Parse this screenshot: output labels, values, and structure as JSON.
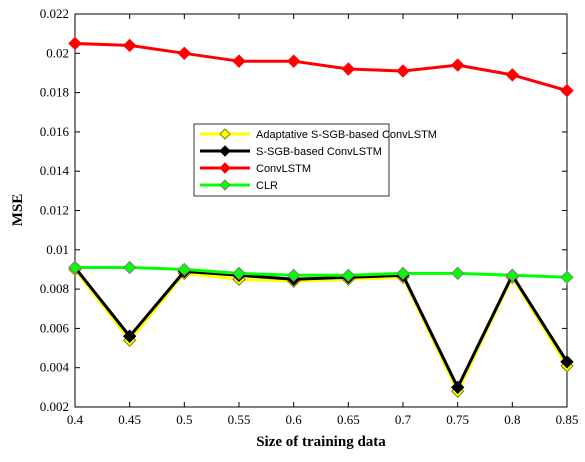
{
  "chart_data": {
    "type": "line",
    "xlabel": "Size of training data",
    "ylabel": "MSE",
    "x": [
      0.4,
      0.45,
      0.5,
      0.55,
      0.6,
      0.65,
      0.7,
      0.75,
      0.8,
      0.85
    ],
    "xlim": [
      0.4,
      0.85
    ],
    "ylim": [
      0.002,
      0.022
    ],
    "x_ticks": [
      "0.4",
      "0.45",
      "0.5",
      "0.55",
      "0.6",
      "0.65",
      "0.7",
      "0.75",
      "0.8",
      "0.85"
    ],
    "x_tick_values": [
      0.4,
      0.45,
      0.5,
      0.55,
      0.6,
      0.65,
      0.7,
      0.75,
      0.8,
      0.85
    ],
    "y_ticks": [
      "0.002",
      "0.004",
      "0.006",
      "0.008",
      "0.01",
      "0.012",
      "0.014",
      "0.016",
      "0.018",
      "0.02",
      "0.022"
    ],
    "y_tick_values": [
      0.002,
      0.004,
      0.006,
      0.008,
      0.01,
      0.012,
      0.014,
      0.016,
      0.018,
      0.02,
      0.022
    ],
    "grid": false,
    "legend_position": "center",
    "series": [
      {
        "name": "Adaptative S-SGB-based ConvLSTM",
        "color": "#ffff00",
        "marker_edge": "#808000",
        "values": [
          0.009,
          0.0054,
          0.0088,
          0.0085,
          0.0084,
          0.0085,
          0.0086,
          0.0028,
          0.0086,
          0.0041
        ]
      },
      {
        "name": "S-SGB-based ConvLSTM",
        "color": "#000000",
        "marker_edge": "#000000",
        "values": [
          0.0091,
          0.0056,
          0.0089,
          0.0087,
          0.0085,
          0.0086,
          0.0087,
          0.003,
          0.0087,
          0.0043
        ]
      },
      {
        "name": "ConvLSTM",
        "color": "#ff0000",
        "marker_edge": "#ff0000",
        "values": [
          0.0205,
          0.0204,
          0.02,
          0.0196,
          0.0196,
          0.0192,
          0.0191,
          0.0194,
          0.0189,
          0.0181
        ]
      },
      {
        "name": "CLR",
        "color": "#00ff00",
        "marker_edge": "#808080",
        "values": [
          0.0091,
          0.0091,
          0.009,
          0.0088,
          0.0087,
          0.0087,
          0.0088,
          0.0088,
          0.0087,
          0.0086
        ]
      }
    ]
  }
}
